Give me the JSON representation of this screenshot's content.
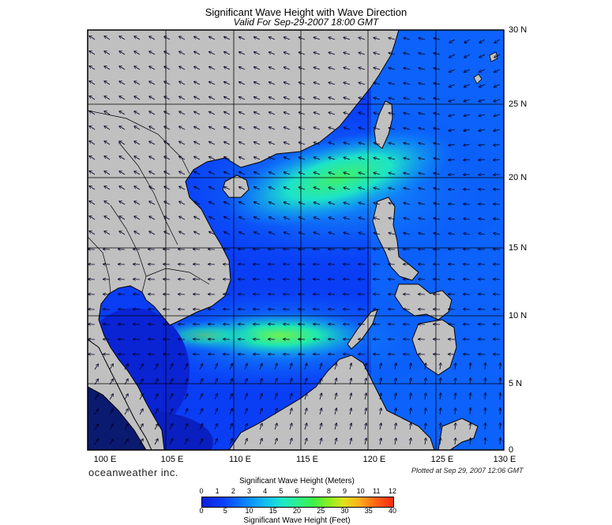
{
  "header": {
    "title": "Significant Wave Height with Wave Direction",
    "subtitle": "Valid For Sep-29-2007 18:00 GMT"
  },
  "axes": {
    "lat_labels": [
      "30 N",
      "25 N",
      "20 N",
      "15 N",
      "10 N",
      "5 N",
      "0"
    ],
    "lon_labels": [
      "100 E",
      "105 E",
      "110 E",
      "115 E",
      "120 E",
      "125 E",
      "130 E"
    ],
    "lat_range": [
      0,
      30
    ],
    "lon_range": [
      99,
      130
    ]
  },
  "footer": {
    "brand": "oceanweather inc.",
    "plotted": "Plotted at Sep 29, 2007 12:06 GMT"
  },
  "colorbar": {
    "title_meters": "Significant Wave Height (Meters)",
    "title_feet": "Significant Wave Height (Feet)",
    "meter_ticks": [
      "0",
      "1",
      "2",
      "3",
      "4",
      "5",
      "6",
      "7",
      "8",
      "9",
      "10",
      "11",
      "12"
    ],
    "feet_ticks": [
      "0",
      "5",
      "10",
      "15",
      "20",
      "25",
      "30",
      "35",
      "40"
    ]
  },
  "colors": {
    "land": "#c0c0c0",
    "sea_low": "#0a1fd8",
    "sea_mid": "#0c8cff",
    "sea_high": "#2ff08e",
    "grid": "#000000"
  }
}
